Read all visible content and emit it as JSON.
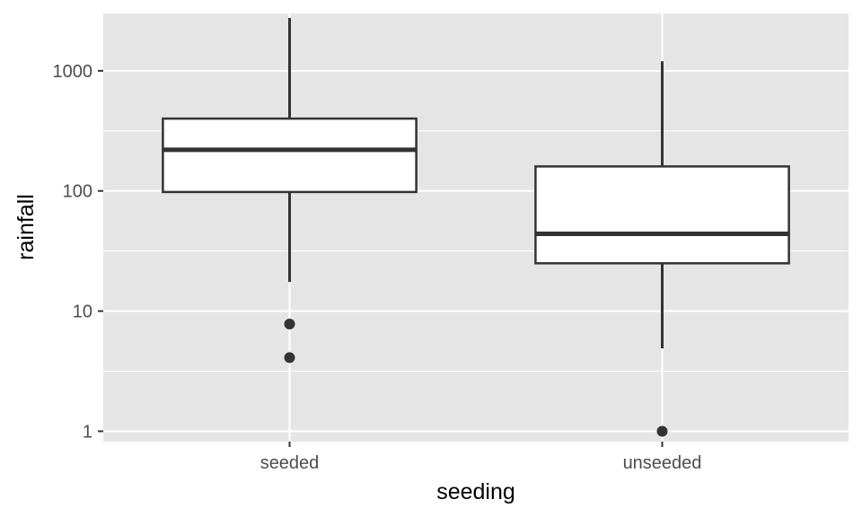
{
  "chart_data": {
    "type": "boxplot",
    "xlabel": "seeding",
    "ylabel": "rainfall",
    "y_scale": "log10",
    "ylim": [
      0.82,
      3000
    ],
    "y_ticks": [
      1,
      10,
      100,
      1000
    ],
    "y_tick_labels": [
      "1",
      "10",
      "100",
      "1000"
    ],
    "categories": [
      "seeded",
      "unseeded"
    ],
    "boxes": [
      {
        "category": "seeded",
        "whisker_low": 17.5,
        "q1": 98,
        "median": 220,
        "q3": 400,
        "whisker_high": 2750,
        "outliers": [
          7.8,
          4.1
        ]
      },
      {
        "category": "unseeded",
        "whisker_low": 4.9,
        "q1": 25,
        "median": 44,
        "q3": 160,
        "whisker_high": 1200,
        "outliers": [
          1.0
        ]
      }
    ],
    "grid": true,
    "legend": "none",
    "colors": {
      "panel_background": "#e5e5e5",
      "grid": "#ffffff",
      "box_fill": "#ffffff",
      "box_stroke": "#333333",
      "point": "#333333",
      "tick_text": "#4d4d4d",
      "title_text": "#000000"
    }
  }
}
